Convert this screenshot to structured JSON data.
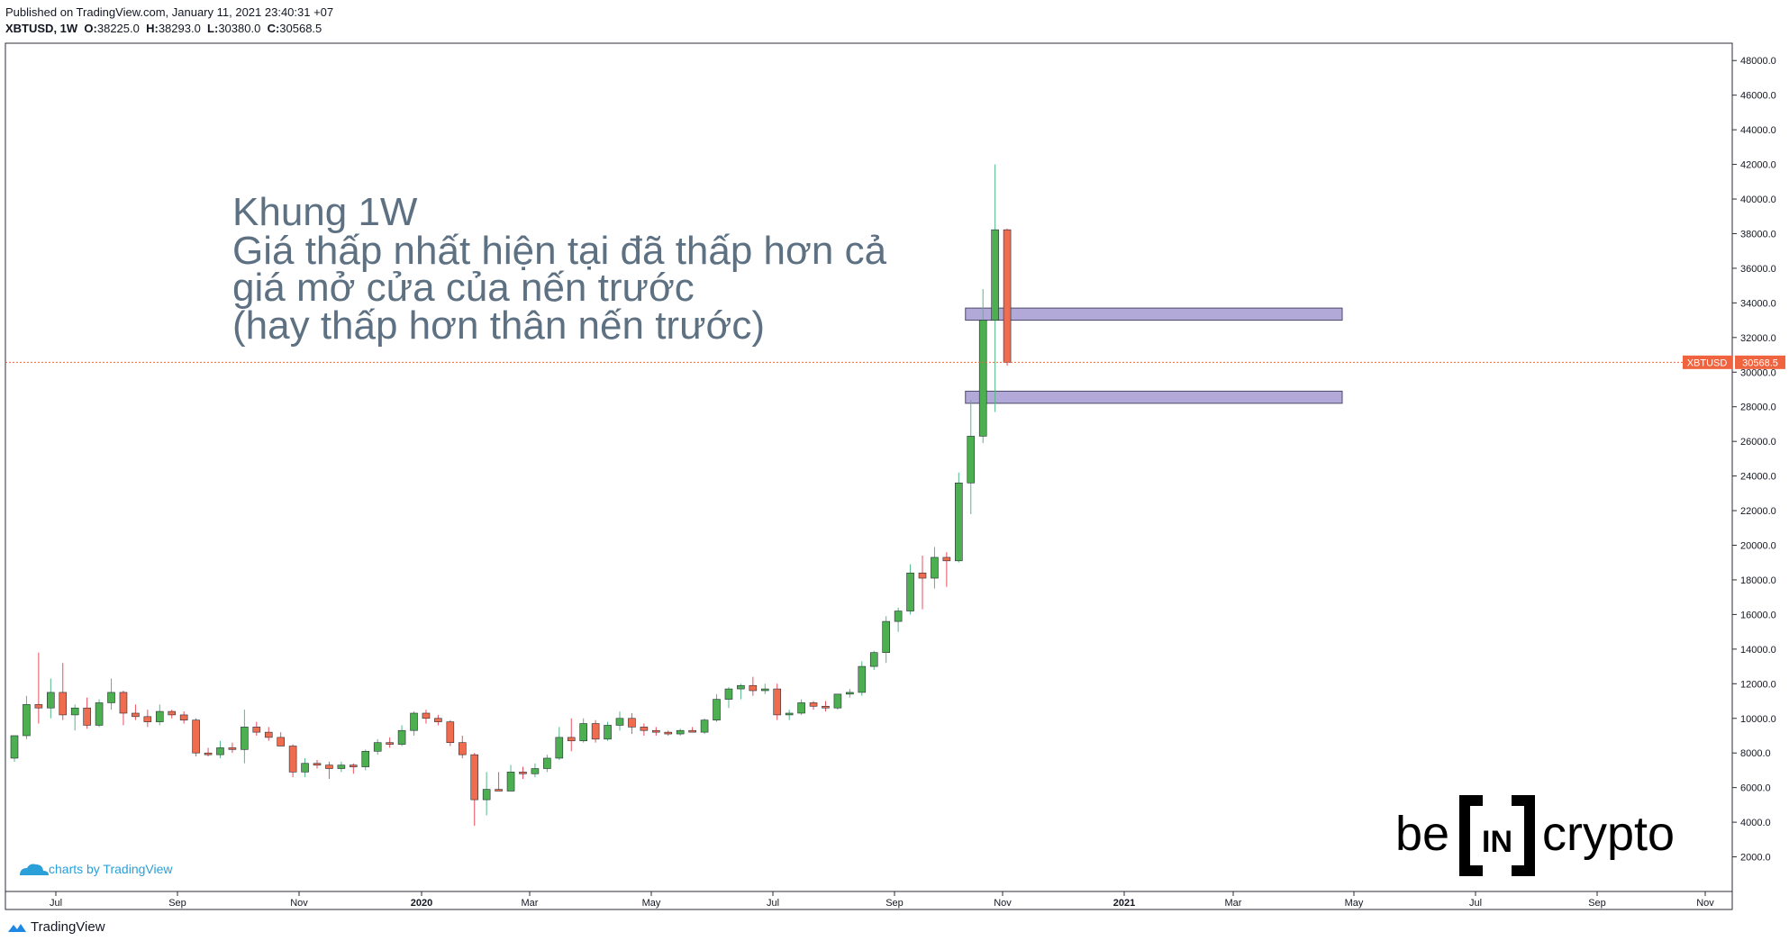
{
  "header": {
    "published": "Published on TradingView.com, January 11, 2021 23:40:31 +07",
    "symbol": "XBTUSD, 1W",
    "o_label": "O:",
    "o": "38225.0",
    "h_label": "H:",
    "h": "38293.0",
    "l_label": "L:",
    "l": "30380.0",
    "c_label": "C:",
    "c": "30568.5"
  },
  "annotation": {
    "line1": "Khung 1W",
    "line2": "Giá thấp nhất hiện tại đã thấp hơn cả",
    "line3": "giá mở cửa của nến trước",
    "line4": "(hay thấp hơn thân nến trước)"
  },
  "watermark": {
    "left": "charts by TradingView"
  },
  "logo": {
    "be": "be",
    "in": "IN",
    "crypto": "crypto"
  },
  "footer": {
    "brand": "TradingView"
  },
  "price_label": {
    "symbol": "XBTUSD",
    "value": "30568.5"
  },
  "colors": {
    "up": "#53b987",
    "down": "#eb4d5c",
    "up_fill": "#4caf50",
    "price_line": "#f0633f",
    "zone": "#b2a9d8"
  },
  "chart_data": {
    "type": "candlestick",
    "ylim": [
      0,
      49000
    ],
    "y_ticks": [
      2000,
      4000,
      6000,
      8000,
      10000,
      12000,
      14000,
      16000,
      18000,
      20000,
      22000,
      24000,
      26000,
      28000,
      30000,
      32000,
      34000,
      36000,
      38000,
      40000,
      42000,
      44000,
      46000,
      48000
    ],
    "y_tick_labels": [
      "2000.0",
      "4000.0",
      "6000.0",
      "8000.0",
      "10000.0",
      "12000.0",
      "14000.0",
      "16000.0",
      "18000.0",
      "20000.0",
      "22000.0",
      "24000.0",
      "26000.0",
      "28000.0",
      "30000.0",
      "32000.0",
      "34000.0",
      "36000.0",
      "38000.0",
      "40000.0",
      "42000.0",
      "44000.0",
      "46000.0",
      "48000.0"
    ],
    "x_tick_labels": [
      "Jul",
      "Sep",
      "Nov",
      "2020",
      "Mar",
      "May",
      "Jul",
      "Sep",
      "Nov",
      "2021",
      "Mar",
      "May",
      "Jul",
      "Sep",
      "Nov"
    ],
    "x_tick_bold": [
      false,
      false,
      false,
      true,
      false,
      false,
      false,
      false,
      false,
      true,
      false,
      false,
      false,
      false,
      false
    ],
    "current_price": 30568.5,
    "candles": [
      {
        "o": 7700,
        "h": 9000,
        "l": 7500,
        "c": 9000
      },
      {
        "o": 9000,
        "h": 11300,
        "l": 8800,
        "c": 10800
      },
      {
        "o": 10800,
        "h": 13800,
        "l": 9700,
        "c": 10600
      },
      {
        "o": 10600,
        "h": 12300,
        "l": 10000,
        "c": 11500
      },
      {
        "o": 11500,
        "h": 13200,
        "l": 9900,
        "c": 10200
      },
      {
        "o": 10200,
        "h": 10800,
        "l": 9300,
        "c": 10600
      },
      {
        "o": 10600,
        "h": 11200,
        "l": 9400,
        "c": 9600
      },
      {
        "o": 9600,
        "h": 11100,
        "l": 9500,
        "c": 10900
      },
      {
        "o": 10900,
        "h": 12300,
        "l": 10500,
        "c": 11500
      },
      {
        "o": 11500,
        "h": 11600,
        "l": 9600,
        "c": 10300
      },
      {
        "o": 10300,
        "h": 10800,
        "l": 9900,
        "c": 10100
      },
      {
        "o": 10100,
        "h": 10500,
        "l": 9500,
        "c": 9800
      },
      {
        "o": 9800,
        "h": 10800,
        "l": 9600,
        "c": 10400
      },
      {
        "o": 10400,
        "h": 10500,
        "l": 10000,
        "c": 10200
      },
      {
        "o": 10200,
        "h": 10400,
        "l": 9700,
        "c": 9900
      },
      {
        "o": 9900,
        "h": 10000,
        "l": 7800,
        "c": 8000
      },
      {
        "o": 8000,
        "h": 8300,
        "l": 7800,
        "c": 7900
      },
      {
        "o": 7900,
        "h": 8700,
        "l": 7700,
        "c": 8300
      },
      {
        "o": 8300,
        "h": 8600,
        "l": 8000,
        "c": 8200
      },
      {
        "o": 8200,
        "h": 10500,
        "l": 7400,
        "c": 9500
      },
      {
        "o": 9500,
        "h": 9800,
        "l": 9000,
        "c": 9200
      },
      {
        "o": 9200,
        "h": 9500,
        "l": 8700,
        "c": 8900
      },
      {
        "o": 8900,
        "h": 9200,
        "l": 8400,
        "c": 8400
      },
      {
        "o": 8400,
        "h": 8500,
        "l": 6600,
        "c": 6900
      },
      {
        "o": 6900,
        "h": 7700,
        "l": 6600,
        "c": 7400
      },
      {
        "o": 7400,
        "h": 7600,
        "l": 7100,
        "c": 7300
      },
      {
        "o": 7300,
        "h": 7500,
        "l": 6500,
        "c": 7100
      },
      {
        "o": 7100,
        "h": 7500,
        "l": 6900,
        "c": 7300
      },
      {
        "o": 7300,
        "h": 7400,
        "l": 6800,
        "c": 7200
      },
      {
        "o": 7200,
        "h": 8200,
        "l": 7000,
        "c": 8100
      },
      {
        "o": 8100,
        "h": 8800,
        "l": 7900,
        "c": 8600
      },
      {
        "o": 8600,
        "h": 8900,
        "l": 8300,
        "c": 8500
      },
      {
        "o": 8500,
        "h": 9600,
        "l": 8400,
        "c": 9300
      },
      {
        "o": 9300,
        "h": 10400,
        "l": 9000,
        "c": 10300
      },
      {
        "o": 10300,
        "h": 10500,
        "l": 9700,
        "c": 10000
      },
      {
        "o": 10000,
        "h": 10200,
        "l": 9600,
        "c": 9800
      },
      {
        "o": 9800,
        "h": 9900,
        "l": 8400,
        "c": 8600
      },
      {
        "o": 8600,
        "h": 9000,
        "l": 7700,
        "c": 7900
      },
      {
        "o": 7900,
        "h": 8000,
        "l": 3800,
        "c": 5300
      },
      {
        "o": 5300,
        "h": 6900,
        "l": 4400,
        "c": 5900
      },
      {
        "o": 5900,
        "h": 6900,
        "l": 5800,
        "c": 5800
      },
      {
        "o": 5800,
        "h": 7300,
        "l": 5800,
        "c": 6900
      },
      {
        "o": 6900,
        "h": 7200,
        "l": 6500,
        "c": 6800
      },
      {
        "o": 6800,
        "h": 7400,
        "l": 6600,
        "c": 7100
      },
      {
        "o": 7100,
        "h": 7900,
        "l": 6900,
        "c": 7700
      },
      {
        "o": 7700,
        "h": 9500,
        "l": 7600,
        "c": 8900
      },
      {
        "o": 8900,
        "h": 10000,
        "l": 8100,
        "c": 8700
      },
      {
        "o": 8700,
        "h": 10000,
        "l": 8600,
        "c": 9700
      },
      {
        "o": 9700,
        "h": 9900,
        "l": 8600,
        "c": 8800
      },
      {
        "o": 8800,
        "h": 9800,
        "l": 8700,
        "c": 9600
      },
      {
        "o": 9600,
        "h": 10400,
        "l": 9300,
        "c": 10000
      },
      {
        "o": 10000,
        "h": 10300,
        "l": 9100,
        "c": 9500
      },
      {
        "o": 9500,
        "h": 9700,
        "l": 9000,
        "c": 9300
      },
      {
        "o": 9300,
        "h": 9500,
        "l": 9000,
        "c": 9200
      },
      {
        "o": 9200,
        "h": 9300,
        "l": 9000,
        "c": 9100
      },
      {
        "o": 9100,
        "h": 9400,
        "l": 9000,
        "c": 9300
      },
      {
        "o": 9300,
        "h": 9500,
        "l": 9200,
        "c": 9200
      },
      {
        "o": 9200,
        "h": 10000,
        "l": 9100,
        "c": 9900
      },
      {
        "o": 9900,
        "h": 11400,
        "l": 9800,
        "c": 11100
      },
      {
        "o": 11100,
        "h": 11800,
        "l": 10600,
        "c": 11700
      },
      {
        "o": 11700,
        "h": 12000,
        "l": 11100,
        "c": 11900
      },
      {
        "o": 11900,
        "h": 12400,
        "l": 11300,
        "c": 11600
      },
      {
        "o": 11600,
        "h": 12000,
        "l": 11400,
        "c": 11700
      },
      {
        "o": 11700,
        "h": 12000,
        "l": 9900,
        "c": 10200
      },
      {
        "o": 10200,
        "h": 10500,
        "l": 9900,
        "c": 10300
      },
      {
        "o": 10300,
        "h": 11100,
        "l": 10200,
        "c": 10900
      },
      {
        "o": 10900,
        "h": 11000,
        "l": 10500,
        "c": 10700
      },
      {
        "o": 10700,
        "h": 11000,
        "l": 10400,
        "c": 10600
      },
      {
        "o": 10600,
        "h": 11400,
        "l": 10500,
        "c": 11400
      },
      {
        "o": 11400,
        "h": 11700,
        "l": 11200,
        "c": 11500
      },
      {
        "o": 11500,
        "h": 13300,
        "l": 11300,
        "c": 13000
      },
      {
        "o": 13000,
        "h": 13900,
        "l": 12800,
        "c": 13800
      },
      {
        "o": 13800,
        "h": 15900,
        "l": 13200,
        "c": 15600
      },
      {
        "o": 15600,
        "h": 16400,
        "l": 15000,
        "c": 16200
      },
      {
        "o": 16200,
        "h": 18900,
        "l": 16000,
        "c": 18400
      },
      {
        "o": 18400,
        "h": 19400,
        "l": 16300,
        "c": 18100
      },
      {
        "o": 18100,
        "h": 19900,
        "l": 17500,
        "c": 19300
      },
      {
        "o": 19300,
        "h": 19600,
        "l": 17600,
        "c": 19100
      },
      {
        "o": 19100,
        "h": 24200,
        "l": 19000,
        "c": 23600
      },
      {
        "o": 23600,
        "h": 28400,
        "l": 21800,
        "c": 26300
      },
      {
        "o": 26300,
        "h": 34800,
        "l": 25900,
        "c": 33000
      },
      {
        "o": 33000,
        "h": 42000,
        "l": 27700,
        "c": 38225
      },
      {
        "o": 38225,
        "h": 38293,
        "l": 30380,
        "c": 30568.5
      }
    ],
    "zones": [
      {
        "y_low": 33000,
        "y_high": 33700
      },
      {
        "y_low": 28200,
        "y_high": 28900
      }
    ]
  }
}
